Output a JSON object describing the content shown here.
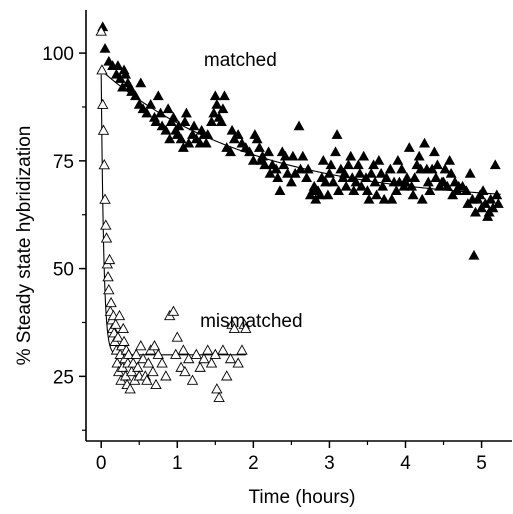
{
  "chart_data": {
    "type": "scatter",
    "xlabel": "Time (hours)",
    "ylabel": "% Steady state hybridization",
    "xlim": [
      -0.2,
      5.4
    ],
    "ylim": [
      10,
      110
    ],
    "x_ticks": [
      0,
      1,
      2,
      3,
      4,
      5
    ],
    "y_ticks": [
      25,
      50,
      75,
      100
    ],
    "annotations": [
      {
        "text": "matched",
        "x": 1.35,
        "y": 97
      },
      {
        "text": "mismatched",
        "x": 1.3,
        "y": 36.5
      }
    ],
    "series": [
      {
        "name": "matched",
        "marker": "filled-triangle",
        "fit": {
          "model": "exponential-decay",
          "baseline": 65,
          "amplitude": 31,
          "rate": 0.5
        },
        "points": [
          [
            0.02,
            106
          ],
          [
            0.05,
            101
          ],
          [
            0.1,
            98
          ],
          [
            0.15,
            97
          ],
          [
            0.2,
            95
          ],
          [
            0.22,
            97
          ],
          [
            0.25,
            94
          ],
          [
            0.28,
            92
          ],
          [
            0.3,
            96
          ],
          [
            0.32,
            95
          ],
          [
            0.35,
            93
          ],
          [
            0.38,
            92
          ],
          [
            0.4,
            91
          ],
          [
            0.45,
            90
          ],
          [
            0.5,
            88
          ],
          [
            0.52,
            93
          ],
          [
            0.55,
            87
          ],
          [
            0.6,
            86
          ],
          [
            0.65,
            88
          ],
          [
            0.7,
            85
          ],
          [
            0.72,
            84
          ],
          [
            0.75,
            90
          ],
          [
            0.78,
            86
          ],
          [
            0.8,
            83
          ],
          [
            0.85,
            82
          ],
          [
            0.88,
            87
          ],
          [
            0.9,
            80
          ],
          [
            0.92,
            84
          ],
          [
            0.95,
            85
          ],
          [
            0.98,
            82
          ],
          [
            1.0,
            81
          ],
          [
            1.02,
            83
          ],
          [
            1.05,
            80
          ],
          [
            1.08,
            78
          ],
          [
            1.1,
            84
          ],
          [
            1.12,
            86
          ],
          [
            1.15,
            79
          ],
          [
            1.2,
            81
          ],
          [
            1.22,
            83
          ],
          [
            1.25,
            80
          ],
          [
            1.3,
            79
          ],
          [
            1.32,
            82
          ],
          [
            1.35,
            81
          ],
          [
            1.38,
            79
          ],
          [
            1.4,
            81
          ],
          [
            1.45,
            84
          ],
          [
            1.48,
            86
          ],
          [
            1.5,
            90
          ],
          [
            1.52,
            88
          ],
          [
            1.55,
            85
          ],
          [
            1.58,
            84
          ],
          [
            1.6,
            87
          ],
          [
            1.62,
            90
          ],
          [
            1.65,
            78
          ],
          [
            1.7,
            77
          ],
          [
            1.72,
            82
          ],
          [
            1.75,
            80
          ],
          [
            1.8,
            81
          ],
          [
            1.85,
            79
          ],
          [
            1.9,
            78
          ],
          [
            1.95,
            77
          ],
          [
            2.0,
            75
          ],
          [
            2.02,
            81
          ],
          [
            2.05,
            80
          ],
          [
            2.08,
            78
          ],
          [
            2.1,
            75
          ],
          [
            2.12,
            76
          ],
          [
            2.15,
            74
          ],
          [
            2.2,
            77
          ],
          [
            2.22,
            72
          ],
          [
            2.25,
            74
          ],
          [
            2.3,
            73
          ],
          [
            2.32,
            71
          ],
          [
            2.35,
            68
          ],
          [
            2.38,
            77
          ],
          [
            2.4,
            74
          ],
          [
            2.42,
            76
          ],
          [
            2.45,
            72
          ],
          [
            2.5,
            70
          ],
          [
            2.52,
            76
          ],
          [
            2.55,
            72
          ],
          [
            2.6,
            83
          ],
          [
            2.62,
            73
          ],
          [
            2.65,
            76
          ],
          [
            2.7,
            71
          ],
          [
            2.72,
            73
          ],
          [
            2.75,
            67
          ],
          [
            2.78,
            68
          ],
          [
            2.8,
            69
          ],
          [
            2.82,
            66
          ],
          [
            2.85,
            68
          ],
          [
            2.88,
            67
          ],
          [
            2.9,
            71
          ],
          [
            2.92,
            75
          ],
          [
            2.95,
            70
          ],
          [
            2.98,
            67
          ],
          [
            3.0,
            72
          ],
          [
            3.02,
            74
          ],
          [
            3.05,
            70
          ],
          [
            3.08,
            77
          ],
          [
            3.1,
            81
          ],
          [
            3.12,
            68
          ],
          [
            3.15,
            73
          ],
          [
            3.18,
            71
          ],
          [
            3.2,
            72
          ],
          [
            3.22,
            69
          ],
          [
            3.25,
            74
          ],
          [
            3.28,
            76
          ],
          [
            3.3,
            71
          ],
          [
            3.32,
            68
          ],
          [
            3.35,
            70
          ],
          [
            3.38,
            74
          ],
          [
            3.4,
            72
          ],
          [
            3.42,
            69
          ],
          [
            3.45,
            76
          ],
          [
            3.48,
            71
          ],
          [
            3.5,
            68
          ],
          [
            3.52,
            66
          ],
          [
            3.55,
            72
          ],
          [
            3.58,
            74
          ],
          [
            3.6,
            70
          ],
          [
            3.62,
            67
          ],
          [
            3.65,
            75
          ],
          [
            3.68,
            72
          ],
          [
            3.7,
            69
          ],
          [
            3.72,
            66
          ],
          [
            3.75,
            71
          ],
          [
            3.8,
            73
          ],
          [
            3.82,
            66
          ],
          [
            3.85,
            70
          ],
          [
            3.88,
            68
          ],
          [
            3.9,
            75
          ],
          [
            3.92,
            70
          ],
          [
            3.95,
            73
          ],
          [
            3.98,
            69
          ],
          [
            4.0,
            70
          ],
          [
            4.02,
            71
          ],
          [
            4.05,
            78
          ],
          [
            4.08,
            69
          ],
          [
            4.1,
            67
          ],
          [
            4.12,
            71
          ],
          [
            4.15,
            74
          ],
          [
            4.18,
            76
          ],
          [
            4.2,
            73
          ],
          [
            4.22,
            66
          ],
          [
            4.25,
            79
          ],
          [
            4.28,
            73
          ],
          [
            4.3,
            70
          ],
          [
            4.32,
            68
          ],
          [
            4.35,
            73
          ],
          [
            4.38,
            77
          ],
          [
            4.4,
            71
          ],
          [
            4.42,
            74
          ],
          [
            4.45,
            69
          ],
          [
            4.48,
            70
          ],
          [
            4.5,
            70
          ],
          [
            4.52,
            73
          ],
          [
            4.55,
            69
          ],
          [
            4.58,
            75
          ],
          [
            4.6,
            72
          ],
          [
            4.62,
            67
          ],
          [
            4.65,
            70
          ],
          [
            4.68,
            68
          ],
          [
            4.7,
            69
          ],
          [
            4.75,
            69
          ],
          [
            4.8,
            68
          ],
          [
            4.82,
            65
          ],
          [
            4.85,
            72
          ],
          [
            4.88,
            66
          ],
          [
            4.9,
            53
          ],
          [
            4.92,
            63
          ],
          [
            4.95,
            66
          ],
          [
            4.98,
            67
          ],
          [
            5.0,
            64
          ],
          [
            5.02,
            68
          ],
          [
            5.05,
            65
          ],
          [
            5.08,
            62
          ],
          [
            5.1,
            63
          ],
          [
            5.12,
            66
          ],
          [
            5.15,
            64
          ],
          [
            5.18,
            74
          ],
          [
            5.2,
            67
          ],
          [
            5.22,
            65
          ]
        ]
      },
      {
        "name": "mismatched",
        "marker": "open-triangle",
        "fit": {
          "model": "exponential-decay",
          "baseline": 30,
          "amplitude": 65,
          "rate": 30,
          "x_end": 1.9
        },
        "points": [
          [
            0.0,
            105
          ],
          [
            0.01,
            96
          ],
          [
            0.02,
            88
          ],
          [
            0.03,
            82
          ],
          [
            0.04,
            74
          ],
          [
            0.05,
            66
          ],
          [
            0.06,
            60
          ],
          [
            0.07,
            57
          ],
          [
            0.08,
            51
          ],
          [
            0.09,
            48
          ],
          [
            0.1,
            45
          ],
          [
            0.11,
            52
          ],
          [
            0.12,
            40
          ],
          [
            0.13,
            42
          ],
          [
            0.14,
            38
          ],
          [
            0.15,
            36
          ],
          [
            0.16,
            39
          ],
          [
            0.17,
            35
          ],
          [
            0.18,
            33
          ],
          [
            0.19,
            37
          ],
          [
            0.2,
            31
          ],
          [
            0.21,
            28
          ],
          [
            0.22,
            34
          ],
          [
            0.23,
            26
          ],
          [
            0.24,
            39
          ],
          [
            0.25,
            30
          ],
          [
            0.26,
            24
          ],
          [
            0.27,
            32
          ],
          [
            0.28,
            27
          ],
          [
            0.29,
            36
          ],
          [
            0.3,
            33
          ],
          [
            0.31,
            29
          ],
          [
            0.32,
            25
          ],
          [
            0.33,
            31
          ],
          [
            0.34,
            23
          ],
          [
            0.35,
            28
          ],
          [
            0.36,
            30
          ],
          [
            0.38,
            22
          ],
          [
            0.4,
            26
          ],
          [
            0.42,
            28
          ],
          [
            0.44,
            24
          ],
          [
            0.46,
            30
          ],
          [
            0.48,
            27
          ],
          [
            0.5,
            25
          ],
          [
            0.52,
            32
          ],
          [
            0.55,
            29
          ],
          [
            0.58,
            25
          ],
          [
            0.6,
            24
          ],
          [
            0.62,
            28
          ],
          [
            0.65,
            31
          ],
          [
            0.68,
            26
          ],
          [
            0.7,
            32
          ],
          [
            0.72,
            23
          ],
          [
            0.75,
            30
          ],
          [
            0.8,
            28
          ],
          [
            0.85,
            25
          ],
          [
            0.9,
            39
          ],
          [
            0.95,
            40
          ],
          [
            0.98,
            30
          ],
          [
            1.0,
            34
          ],
          [
            1.05,
            27
          ],
          [
            1.08,
            31
          ],
          [
            1.1,
            26
          ],
          [
            1.15,
            29
          ],
          [
            1.2,
            24
          ],
          [
            1.25,
            30
          ],
          [
            1.3,
            27
          ],
          [
            1.35,
            29
          ],
          [
            1.4,
            31
          ],
          [
            1.45,
            28
          ],
          [
            1.5,
            30
          ],
          [
            1.52,
            22
          ],
          [
            1.55,
            20
          ],
          [
            1.6,
            31
          ],
          [
            1.65,
            25
          ],
          [
            1.7,
            29
          ],
          [
            1.72,
            37
          ],
          [
            1.75,
            36
          ],
          [
            1.8,
            28
          ],
          [
            1.85,
            31
          ],
          [
            1.88,
            37
          ],
          [
            1.9,
            36
          ]
        ]
      }
    ]
  }
}
